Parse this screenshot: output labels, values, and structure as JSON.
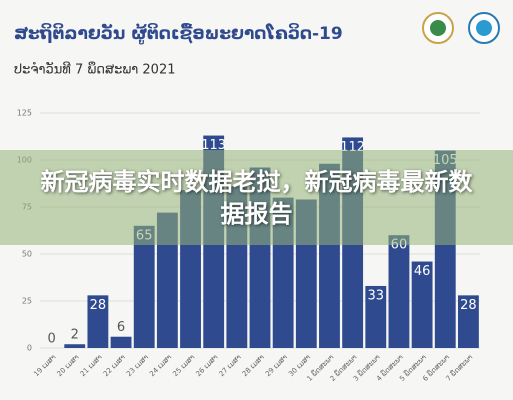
{
  "chart_data": {
    "type": "bar",
    "title": "ສະຖິຕິລາຍວັນ ຜູ້ຕິດເຊື້ອພະຍາດໂຄວິດ-19",
    "subtitle": "ປະຈຳວັນທີ 7 ພຶດສະພາ 2021",
    "categories": [
      "19 ເມສາ",
      "20 ເມສາ",
      "21 ເມສາ",
      "22 ເມສາ",
      "23 ເມສາ",
      "24 ເມສາ",
      "25 ເມສາ",
      "26 ເມສາ",
      "27 ເມສາ",
      "28 ເມສາ",
      "29 ເມສາ",
      "30 ເມສາ",
      "1 ພຶດສະພາ",
      "2 ພຶດສະພາ",
      "3 ພຶດສະພາ",
      "4 ພຶດສະພາ",
      "5 ພຶດສະພາ",
      "6 ພຶດສະພາ",
      "7 ພຶດສະພາ"
    ],
    "values": [
      0,
      2,
      28,
      6,
      65,
      72,
      84,
      113,
      86,
      96,
      80,
      79,
      98,
      112,
      33,
      60,
      46,
      105,
      28
    ],
    "value_labels": [
      "0",
      "2",
      "28",
      "6",
      "65",
      null,
      null,
      "113",
      null,
      null,
      null,
      null,
      null,
      "112",
      "33",
      "60",
      "46",
      "105",
      "28"
    ],
    "color": "#2f4a8e",
    "ylim": [
      0,
      125
    ],
    "yticks": [
      0,
      25,
      50,
      75,
      100,
      125
    ],
    "grid": true
  },
  "overlay": {
    "text": "新冠病毒实时数据老挝，新冠病毒最新数据报告"
  }
}
